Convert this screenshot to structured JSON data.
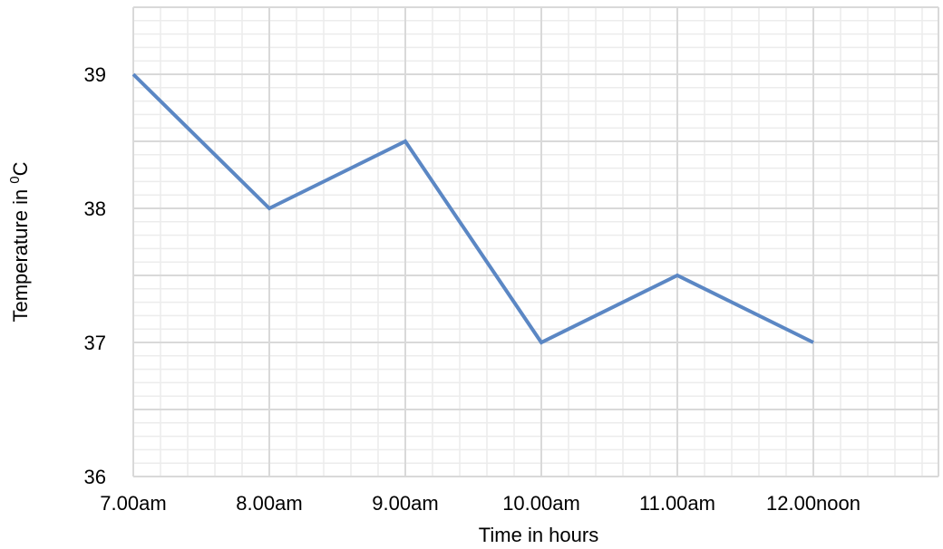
{
  "chart_data": {
    "type": "line",
    "categories": [
      "7.00am",
      "8.00am",
      "9.00am",
      "10.00am",
      "11.00am",
      "12.00noon"
    ],
    "series": [
      {
        "values": [
          39.0,
          38.0,
          38.5,
          37.0,
          37.5,
          37.0
        ]
      }
    ],
    "xlabel": "Time in hours",
    "ylabel": {
      "prefix": "Temperature in ",
      "superscript": "0",
      "unit": "C"
    },
    "ylim": [
      36,
      39.5
    ],
    "yticks": [
      36,
      37,
      38,
      39
    ],
    "grid": true,
    "line_color": "#5b87c4",
    "grid_color": "#d9d9d9"
  }
}
